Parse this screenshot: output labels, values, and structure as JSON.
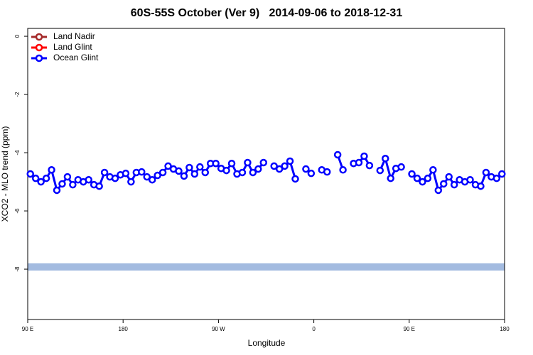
{
  "chart_data": {
    "type": "line",
    "title": "60S-55S October (Ver 9)   2014-09-06 to 2018-12-31",
    "xlabel": "Longitude",
    "ylabel": "XCO2 - MLO trend (ppm)",
    "xlim": [
      90,
      540
    ],
    "xticks": [
      {
        "value": 90,
        "label": "90 E"
      },
      {
        "value": 180,
        "label": "180"
      },
      {
        "value": 270,
        "label": "90 W"
      },
      {
        "value": 360,
        "label": "0"
      },
      {
        "value": 450,
        "label": "90 E"
      },
      {
        "value": 540,
        "label": "180"
      }
    ],
    "ylim": [
      -9.73,
      0.27
    ],
    "yticks": [
      0,
      -2,
      -4,
      -6,
      -8
    ],
    "legend": "top-left",
    "reference_band": {
      "color": "#a3bbe0",
      "range": [
        -8.05,
        -7.8
      ]
    },
    "x": [
      92.5,
      97.5,
      102.5,
      107.5,
      112.5,
      117.5,
      122.5,
      127.5,
      132.5,
      137.5,
      142.5,
      147.5,
      152.5,
      157.5,
      162.5,
      167.5,
      172.5,
      177.5,
      182.5,
      187.5,
      192.5,
      197.5,
      202.5,
      207.5,
      212.5,
      217.5,
      222.5,
      227.5,
      232.5,
      237.5,
      242.5,
      247.5,
      252.5,
      257.5,
      262.5,
      267.5,
      272.5,
      277.5,
      282.5,
      287.5,
      292.5,
      297.5,
      302.5,
      307.5,
      312.5,
      317.5,
      322.5,
      327.5,
      332.5,
      337.5,
      342.5,
      347.5,
      352.5,
      357.5,
      362.5,
      367.5,
      372.5,
      377.5,
      382.5,
      387.5,
      392.5,
      397.5,
      402.5,
      407.5,
      412.5,
      417.5,
      422.5,
      427.5,
      432.5,
      437.5,
      442.5,
      447.5,
      452.5,
      457.5,
      462.5,
      467.5,
      472.5,
      477.5,
      482.5,
      487.5,
      492.5,
      497.5,
      502.5,
      507.5,
      512.5,
      517.5,
      522.5,
      527.5,
      532.5,
      537.5
    ],
    "series": [
      {
        "name": "Land Nadir",
        "color": "#a52a2a",
        "values": [
          null,
          null,
          null,
          null,
          null,
          null,
          null,
          null,
          null,
          null,
          null,
          null,
          null,
          null,
          null,
          null,
          null,
          null,
          null,
          null,
          null,
          null,
          null,
          null,
          null,
          null,
          null,
          null,
          null,
          null,
          null,
          null,
          null,
          null,
          null,
          null,
          null,
          null,
          null,
          null,
          null,
          null,
          null,
          null,
          null,
          null,
          null,
          null,
          null,
          null,
          null,
          null,
          null,
          null,
          null,
          null,
          null,
          null,
          null,
          null,
          null,
          null,
          null,
          null,
          null,
          null,
          null,
          null,
          null,
          null,
          null,
          null,
          null,
          null,
          null,
          null,
          null,
          null,
          null,
          null,
          null,
          null,
          null,
          null,
          null,
          null,
          null,
          null,
          null,
          null
        ]
      },
      {
        "name": "Land Glint",
        "color": "#ff0000",
        "values": [
          null,
          null,
          null,
          null,
          null,
          null,
          null,
          null,
          null,
          null,
          null,
          null,
          null,
          null,
          null,
          null,
          null,
          null,
          null,
          null,
          null,
          null,
          null,
          null,
          null,
          null,
          null,
          null,
          null,
          null,
          null,
          null,
          null,
          null,
          null,
          null,
          null,
          null,
          null,
          null,
          null,
          null,
          null,
          null,
          null,
          null,
          null,
          null,
          null,
          null,
          null,
          null,
          null,
          null,
          null,
          null,
          null,
          null,
          null,
          null,
          null,
          null,
          null,
          null,
          null,
          null,
          null,
          null,
          null,
          null,
          null,
          null,
          null,
          null,
          null,
          null,
          null,
          null,
          null,
          null,
          null,
          null,
          null,
          null,
          null,
          null,
          null,
          null,
          null,
          null
        ]
      },
      {
        "name": "Ocean Glint",
        "color": "#0000ff",
        "values": [
          -4.73,
          -4.88,
          -5.0,
          -4.88,
          -4.59,
          -5.29,
          -5.07,
          -4.83,
          -5.1,
          -4.93,
          -5.0,
          -4.93,
          -5.1,
          -5.15,
          -4.68,
          -4.83,
          -4.88,
          -4.76,
          -4.71,
          -5.0,
          -4.68,
          -4.66,
          -4.83,
          -4.93,
          -4.78,
          -4.68,
          -4.46,
          -4.56,
          -4.63,
          -4.8,
          -4.51,
          -4.73,
          -4.49,
          -4.68,
          -4.37,
          -4.37,
          -4.54,
          -4.61,
          -4.37,
          -4.73,
          -4.68,
          -4.34,
          -4.68,
          -4.56,
          -4.34,
          null,
          -4.46,
          -4.56,
          -4.46,
          -4.29,
          -4.9,
          null,
          -4.56,
          -4.71,
          null,
          -4.59,
          -4.66,
          null,
          -4.07,
          -4.59,
          null,
          -4.37,
          -4.34,
          -4.12,
          -4.44,
          null,
          -4.61,
          -4.2,
          -4.88,
          -4.54,
          -4.49,
          null,
          -4.73,
          -4.88,
          -5.0,
          -4.88,
          -4.59,
          -5.29,
          -5.07,
          -4.83,
          -5.1,
          -4.93,
          -5.0,
          -4.93,
          -5.1,
          -5.15,
          -4.68,
          -4.83,
          -4.88,
          -4.73
        ]
      }
    ]
  }
}
